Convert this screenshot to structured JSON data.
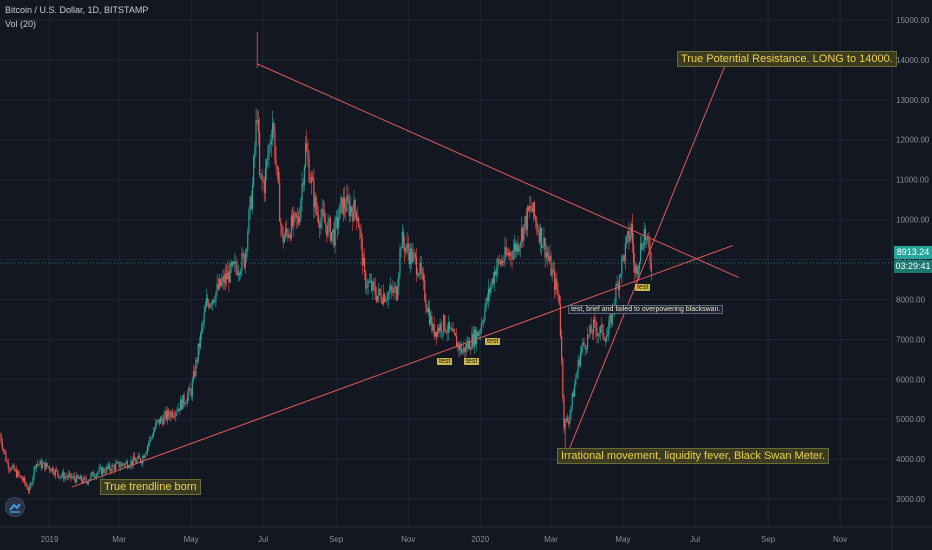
{
  "header": {
    "title": "Bitcoin / U.S. Dollar, 1D, BITSTAMP",
    "indicator": "Vol (20)"
  },
  "price_axis": {
    "current_price": "8913.24",
    "countdown": "03:29:41",
    "current_color": "#26a69a"
  },
  "annotations": {
    "resistance": "True Potential Resistance. LONG to 14000.",
    "irrational": "Irrational movement, liquidity fever, Black Swan Meter.",
    "trendline_born": "True trendline born",
    "blackswan": "test, brief and failed to overpowering blackswan.",
    "test_labels": [
      "test",
      "test",
      "test",
      "test"
    ]
  },
  "colors": {
    "background": "#131722",
    "up": "#26a69a",
    "down": "#ef5350",
    "trendline": "#e05a5a",
    "annotation_text": "#f0d24a"
  },
  "icons": {
    "logo": "tradingview-logo-icon"
  },
  "chart_data": {
    "type": "candlestick",
    "title": "Bitcoin / U.S. Dollar, 1D, BITSTAMP",
    "y_axis_side": "right",
    "ylim": [
      2300,
      15500
    ],
    "y_ticks": [
      3000,
      4000,
      5000,
      6000,
      7000,
      8000,
      9000,
      10000,
      11000,
      12000,
      13000,
      14000,
      15000
    ],
    "y_tick_labels": [
      "3000.00",
      "4000.00",
      "5000.00",
      "6000.00",
      "7000.00",
      "8000.00",
      "9000.00",
      "10000.00",
      "11000.00",
      "12000.00",
      "13000.00",
      "14000.00",
      "15000.00"
    ],
    "xlim": [
      "2018-11-20",
      "2020-12-15"
    ],
    "x_ticks": [
      "2019-01-01",
      "2019-03-01",
      "2019-05-01",
      "2019-07-01",
      "2019-09-01",
      "2019-11-01",
      "2020-01-01",
      "2020-03-01",
      "2020-05-01",
      "2020-07-01",
      "2020-09-01",
      "2020-11-01"
    ],
    "x_tick_labels": [
      "2019",
      "Mar",
      "May",
      "Jul",
      "Sep",
      "Nov",
      "2020",
      "Mar",
      "May",
      "Jul",
      "Sep",
      "Nov"
    ],
    "grid": true,
    "close_path": [
      [
        "2018-11-20",
        4600
      ],
      [
        "2018-11-26",
        3900
      ],
      [
        "2018-12-10",
        3450
      ],
      [
        "2018-12-15",
        3200
      ],
      [
        "2018-12-20",
        3900
      ],
      [
        "2019-01-01",
        3800
      ],
      [
        "2019-01-10",
        3600
      ],
      [
        "2019-02-01",
        3450
      ],
      [
        "2019-02-08",
        3650
      ],
      [
        "2019-03-01",
        3850
      ],
      [
        "2019-03-20",
        4000
      ],
      [
        "2019-04-02",
        4900
      ],
      [
        "2019-04-20",
        5300
      ],
      [
        "2019-05-01",
        5700
      ],
      [
        "2019-05-14",
        7900
      ],
      [
        "2019-05-20",
        8100
      ],
      [
        "2019-06-01",
        8600
      ],
      [
        "2019-06-15",
        9000
      ],
      [
        "2019-06-22",
        10800
      ],
      [
        "2019-06-26",
        12800
      ],
      [
        "2019-06-28",
        11000
      ],
      [
        "2019-07-02",
        10900
      ],
      [
        "2019-07-09",
        12500
      ],
      [
        "2019-07-17",
        9500
      ],
      [
        "2019-07-24",
        9800
      ],
      [
        "2019-07-31",
        10000
      ],
      [
        "2019-08-06",
        11800
      ],
      [
        "2019-08-15",
        10200
      ],
      [
        "2019-08-30",
        9600
      ],
      [
        "2019-09-06",
        10400
      ],
      [
        "2019-09-19",
        10200
      ],
      [
        "2019-09-25",
        8500
      ],
      [
        "2019-10-06",
        8100
      ],
      [
        "2019-10-22",
        8200
      ],
      [
        "2019-10-26",
        9500
      ],
      [
        "2019-11-01",
        9200
      ],
      [
        "2019-11-10",
        8800
      ],
      [
        "2019-11-22",
        7200
      ],
      [
        "2019-12-01",
        7400
      ],
      [
        "2019-12-17",
        6700
      ],
      [
        "2019-12-31",
        7200
      ],
      [
        "2020-01-14",
        8800
      ],
      [
        "2020-02-01",
        9350
      ],
      [
        "2020-02-13",
        10300
      ],
      [
        "2020-02-25",
        9300
      ],
      [
        "2020-03-08",
        8000
      ],
      [
        "2020-03-12",
        4900
      ],
      [
        "2020-03-16",
        5000
      ],
      [
        "2020-03-26",
        6700
      ],
      [
        "2020-04-06",
        7300
      ],
      [
        "2020-04-18",
        7100
      ],
      [
        "2020-04-29",
        8800
      ],
      [
        "2020-05-08",
        9800
      ],
      [
        "2020-05-11",
        8600
      ],
      [
        "2020-05-19",
        9700
      ],
      [
        "2020-05-25",
        8913
      ]
    ],
    "spikes": [
      [
        "2020-03-13",
        4100
      ],
      [
        "2019-06-26",
        13800
      ]
    ],
    "trendlines": [
      {
        "name": "descending resistance",
        "from": [
          "2019-06-26",
          13900
        ],
        "to": [
          "2020-08-07",
          8550
        ]
      },
      {
        "name": "ascending support",
        "from": [
          "2019-01-20",
          3300
        ],
        "to": [
          "2020-08-02",
          9350
        ]
      },
      {
        "name": "black swan support",
        "from": [
          "2020-03-13",
          4000
        ],
        "to": [
          "2020-07-27",
          13900
        ]
      }
    ],
    "current_price": 8913.24
  }
}
